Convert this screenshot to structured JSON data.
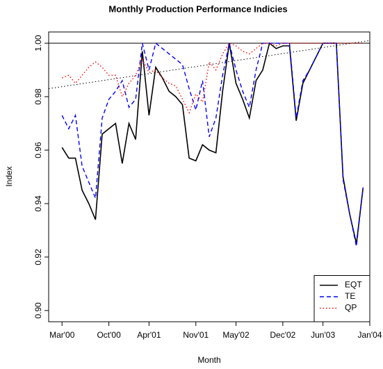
{
  "chart_data": {
    "type": "line",
    "title": "Monthly Production Performance Indicies",
    "x_label": "Month",
    "y_label": "Index",
    "x": [
      "2000-03",
      "2000-04",
      "2000-05",
      "2000-06",
      "2000-07",
      "2000-08",
      "2000-09",
      "2000-10",
      "2000-11",
      "2000-12",
      "2001-01",
      "2001-02",
      "2001-03",
      "2001-04",
      "2001-05",
      "2001-06",
      "2001-07",
      "2001-08",
      "2001-09",
      "2001-10",
      "2001-11",
      "2001-12",
      "2002-01",
      "2002-02",
      "2002-03",
      "2002-04",
      "2002-05",
      "2002-06",
      "2002-07",
      "2002-08",
      "2002-09",
      "2002-10",
      "2002-11",
      "2002-12",
      "2003-01",
      "2003-02",
      "2003-03",
      "2003-04",
      "2003-05",
      "2003-06",
      "2003-07",
      "2003-08",
      "2003-09",
      "2003-10",
      "2003-11",
      "2003-12"
    ],
    "series": [
      {
        "name": "EQT",
        "color": "#000000",
        "dash": "solid",
        "values": [
          0.961,
          0.957,
          0.957,
          0.945,
          0.94,
          0.934,
          0.966,
          0.968,
          0.97,
          0.955,
          0.97,
          0.964,
          0.997,
          0.973,
          0.991,
          0.987,
          0.982,
          0.98,
          0.977,
          0.957,
          0.956,
          0.962,
          0.96,
          0.959,
          0.982,
          1.0,
          0.985,
          0.979,
          0.972,
          0.986,
          0.99,
          1.0,
          0.998,
          0.999,
          0.999,
          0.971,
          0.985,
          0.99,
          0.995,
          1.0,
          1.0,
          1.0,
          0.95,
          0.936,
          0.925,
          0.946
        ]
      },
      {
        "name": "TE",
        "color": "#0000ff",
        "dash": "dashed",
        "values": [
          0.973,
          0.968,
          0.973,
          0.954,
          0.948,
          0.942,
          0.972,
          0.979,
          0.982,
          0.986,
          0.976,
          0.979,
          1.0,
          0.99,
          1.0,
          0.998,
          0.996,
          0.994,
          0.992,
          0.983,
          0.975,
          0.986,
          0.965,
          0.972,
          0.988,
          1.0,
          0.99,
          0.982,
          0.976,
          0.99,
          1.0,
          1.0,
          1.0,
          1.0,
          1.0,
          0.972,
          0.986,
          0.99,
          0.995,
          1.0,
          1.0,
          1.0,
          0.949,
          0.936,
          0.924,
          0.946
        ]
      },
      {
        "name": "QP",
        "color": "#ff0000",
        "dash": "dotted",
        "values": [
          0.987,
          0.988,
          0.985,
          0.988,
          0.991,
          0.993,
          0.991,
          0.988,
          0.988,
          0.98,
          0.985,
          0.988,
          0.994,
          0.989,
          0.99,
          0.987,
          0.985,
          0.984,
          0.979,
          0.974,
          0.981,
          0.978,
          0.993,
          0.99,
          0.996,
          1.0,
          0.999,
          0.997,
          0.996,
          0.998,
          1.0,
          1.0,
          0.999,
          1.0,
          1.0,
          1.0,
          1.0,
          1.0,
          1.0,
          1.0,
          1.0,
          1.0,
          1.0,
          1.0,
          1.0,
          1.0
        ]
      }
    ],
    "hline": 1.0,
    "trend_line": {
      "x": [
        "2000-01",
        "2004-01"
      ],
      "values": [
        0.983,
        1.001
      ],
      "color": "#000000"
    },
    "xlim": [
      "2000-01",
      "2004-01"
    ],
    "xticks": [
      {
        "value": "2000-03",
        "label": "Mar'00"
      },
      {
        "value": "2000-10",
        "label": "Oct'00"
      },
      {
        "value": "2001-04",
        "label": "Apr'01"
      },
      {
        "value": "2001-11",
        "label": "Nov'01"
      },
      {
        "value": "2002-05",
        "label": "May'02"
      },
      {
        "value": "2002-12",
        "label": "Dec'02"
      },
      {
        "value": "2003-06",
        "label": "Jun'03"
      },
      {
        "value": "2004-01",
        "label": "Jan'04"
      }
    ],
    "ylim": [
      0.8958,
      1.0042
    ],
    "yticks": [
      {
        "value": 0.9,
        "label": "0.90"
      },
      {
        "value": 0.92,
        "label": "0.92"
      },
      {
        "value": 0.94,
        "label": "0.94"
      },
      {
        "value": 0.96,
        "label": "0.96"
      },
      {
        "value": 0.98,
        "label": "0.98"
      },
      {
        "value": 1.0,
        "label": "1.00"
      }
    ],
    "legend": "bottom-right"
  }
}
